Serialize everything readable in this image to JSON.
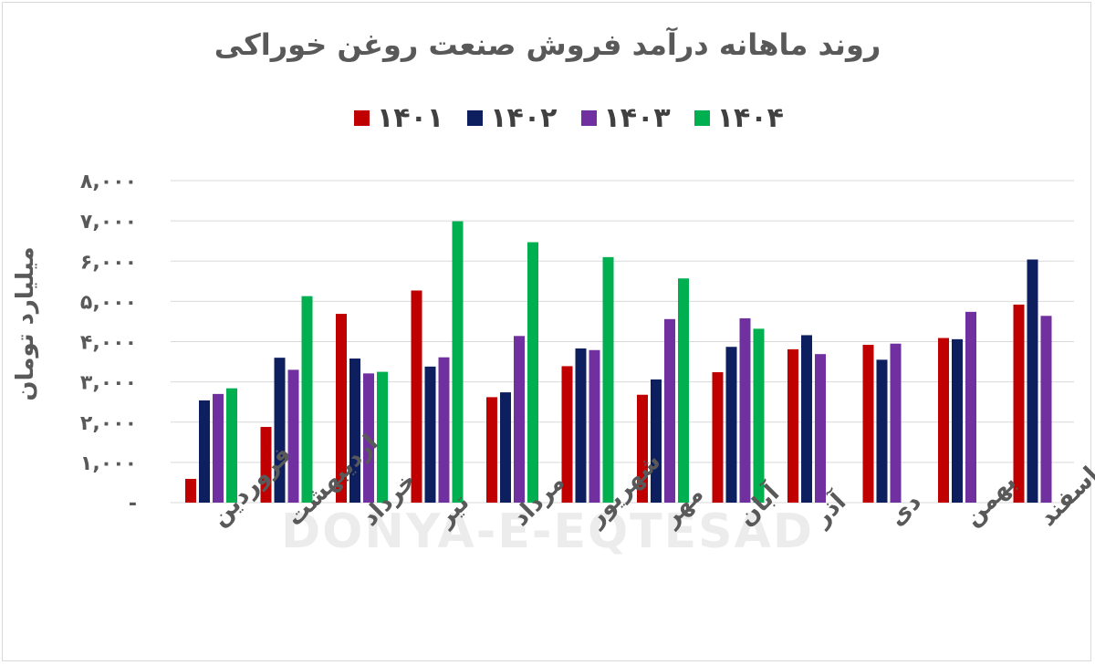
{
  "watermark": "DONYA-E-EQTESAD",
  "chart_data": {
    "type": "bar",
    "title": "روند ماهانه درآمد فروش صنعت روغن خوراکی",
    "ylabel": "میلیارد تومان",
    "xlabel": "",
    "ylim": [
      0,
      8000
    ],
    "yticks": [
      0,
      1000,
      2000,
      3000,
      4000,
      5000,
      6000,
      7000,
      8000
    ],
    "ytick_labels": [
      "-",
      "۱,۰۰۰",
      "۲,۰۰۰",
      "۳,۰۰۰",
      "۴,۰۰۰",
      "۵,۰۰۰",
      "۶,۰۰۰",
      "۷,۰۰۰",
      "۸,۰۰۰"
    ],
    "grid": true,
    "legend_position": "top",
    "categories": [
      "فروردین",
      "اردیبهشت",
      "خرداد",
      "تیر",
      "مرداد",
      "شهریور",
      "مهر",
      "آبان",
      "آذر",
      "دی",
      "بهمن",
      "اسفند"
    ],
    "series": [
      {
        "name": "۱۴۰۱",
        "color": "#c00000",
        "values": [
          590,
          1880,
          4690,
          5270,
          2620,
          3390,
          2680,
          3240,
          3810,
          3920,
          4090,
          4920
        ]
      },
      {
        "name": "۱۴۰۲",
        "color": "#0d1f5e",
        "values": [
          2540,
          3600,
          3580,
          3380,
          2740,
          3830,
          3060,
          3870,
          4160,
          3550,
          4060,
          6040
        ]
      },
      {
        "name": "۱۴۰۳",
        "color": "#7030a0",
        "values": [
          2700,
          3300,
          3210,
          3610,
          4140,
          3790,
          4560,
          4580,
          3690,
          3950,
          4740,
          4640
        ]
      },
      {
        "name": "۱۴۰۴",
        "color": "#00b050",
        "values": [
          2840,
          5130,
          3250,
          6990,
          6470,
          6100,
          5570,
          4320,
          null,
          null,
          null,
          null
        ]
      }
    ]
  }
}
